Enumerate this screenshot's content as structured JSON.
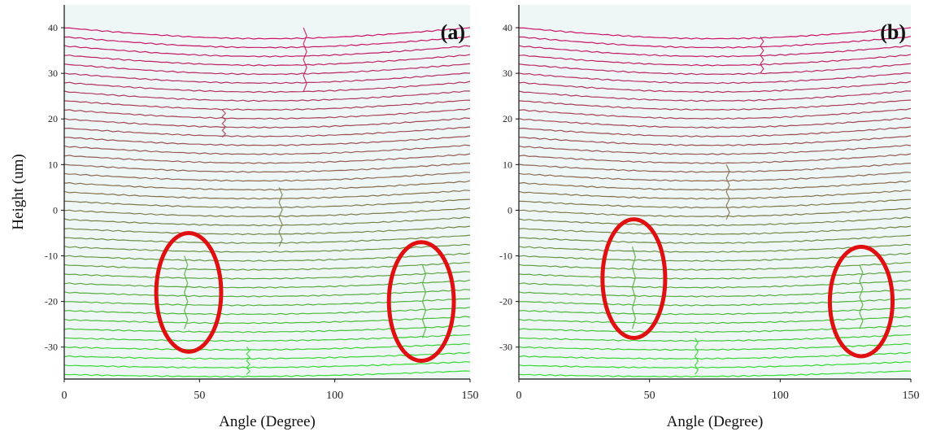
{
  "chart_data": [
    {
      "panel_label": "(a)",
      "type": "line",
      "xlabel": "Angle (Degree)",
      "ylabel": "Height (um)",
      "xlim": [
        0,
        150
      ],
      "ylim": [
        -37,
        45
      ],
      "x_ticks": [
        0,
        50,
        100,
        150
      ],
      "y_ticks": [
        -30,
        -20,
        -10,
        0,
        10,
        20,
        30,
        40
      ],
      "profile_heights": [
        -36,
        -34,
        -32,
        -30,
        -28,
        -26,
        -24,
        -22,
        -20,
        -18,
        -16,
        -14,
        -12,
        -10,
        -8,
        -6,
        -4,
        -2,
        0,
        2,
        4,
        6,
        8,
        10,
        12,
        14,
        16,
        18,
        20,
        22,
        24,
        26,
        28,
        30,
        32,
        34,
        36,
        38,
        40
      ],
      "color_low": "#33dd33",
      "color_high": "#cc1166",
      "defect_ellipses": [
        {
          "center_angle": 46,
          "center_height": -18,
          "angle_halfwidth": 12,
          "height_halfwidth": 13
        },
        {
          "center_angle": 132,
          "center_height": -20,
          "angle_halfwidth": 12,
          "height_halfwidth": 13
        }
      ],
      "ellipse_color": "#e01010",
      "spikes": [
        {
          "angle": 45,
          "height_from": -26,
          "height_to": -10
        },
        {
          "angle": 133,
          "height_from": -28,
          "height_to": -12
        },
        {
          "angle": 80,
          "height_from": -8,
          "height_to": 5
        },
        {
          "angle": 59,
          "height_from": 16,
          "height_to": 22
        },
        {
          "angle": 89,
          "height_from": 26,
          "height_to": 40
        },
        {
          "angle": 68,
          "height_from": -36,
          "height_to": -30
        }
      ]
    },
    {
      "panel_label": "(b)",
      "type": "line",
      "xlabel": "Angle (Degree)",
      "ylabel": "",
      "xlim": [
        0,
        150
      ],
      "ylim": [
        -37,
        45
      ],
      "x_ticks": [
        0,
        50,
        100,
        150
      ],
      "y_ticks": [
        -30,
        -20,
        -10,
        0,
        10,
        20,
        30,
        40
      ],
      "profile_heights": [
        -36,
        -34,
        -32,
        -30,
        -28,
        -26,
        -24,
        -22,
        -20,
        -18,
        -16,
        -14,
        -12,
        -10,
        -8,
        -6,
        -4,
        -2,
        0,
        2,
        4,
        6,
        8,
        10,
        12,
        14,
        16,
        18,
        20,
        22,
        24,
        26,
        28,
        30,
        32,
        34,
        36,
        38,
        40
      ],
      "color_low": "#33dd33",
      "color_high": "#cc1166",
      "defect_ellipses": [
        {
          "center_angle": 44,
          "center_height": -15,
          "angle_halfwidth": 12,
          "height_halfwidth": 13
        },
        {
          "center_angle": 131,
          "center_height": -20,
          "angle_halfwidth": 12,
          "height_halfwidth": 12
        }
      ],
      "ellipse_color": "#e01010",
      "spikes": [
        {
          "angle": 44,
          "height_from": -26,
          "height_to": -8
        },
        {
          "angle": 131,
          "height_from": -26,
          "height_to": -12
        },
        {
          "angle": 80,
          "height_from": -2,
          "height_to": 10
        },
        {
          "angle": 93,
          "height_from": 30,
          "height_to": 38
        },
        {
          "angle": 68,
          "height_from": -36,
          "height_to": -28
        }
      ]
    }
  ]
}
